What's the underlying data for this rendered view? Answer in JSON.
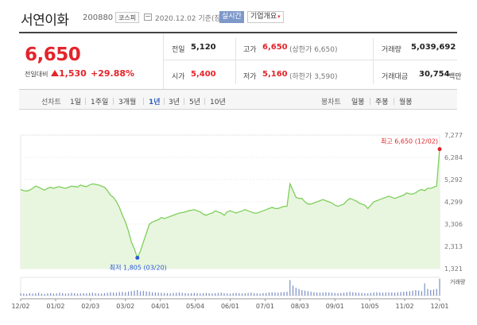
{
  "header": {
    "stock_name": "서연이화",
    "stock_code": "200880",
    "market_badge": "코스피",
    "date_text": "2020.12.02  기준(장마감)",
    "realtime_label": "실시간",
    "company_info_label": "기업개요"
  },
  "price": {
    "current": "6,650",
    "change_label": "전일대비",
    "change_value": "1,530",
    "change_percent": "+29.88%",
    "direction": "up"
  },
  "stats": {
    "prev_close_label": "전일",
    "prev_close": "5,120",
    "high_label": "고가",
    "high": "6,650",
    "upper_limit": "(상한가 6,650)",
    "volume_label": "거래량",
    "volume": "5,039,692",
    "open_label": "시가",
    "open": "5,400",
    "low_label": "저가",
    "low": "5,160",
    "lower_limit": "(하한가 3,590)",
    "value_label": "거래대금",
    "value": "30,754",
    "value_unit": "백만"
  },
  "line_chart_tabs": {
    "label": "선차트",
    "items": [
      "1일",
      "1주일",
      "3개월",
      "1년",
      "3년",
      "5년",
      "10년"
    ],
    "selected": "1년"
  },
  "candle_chart_tabs": {
    "label": "봉차트",
    "items": [
      "일봉",
      "주봉",
      "월봉"
    ]
  },
  "colors": {
    "up": "#e3242b",
    "down": "#2a5ad6",
    "accent": "#3461c4",
    "line": "#7ccf5a",
    "fill": "#e9f6df"
  },
  "chart_data": {
    "type": "area",
    "x_ticks": [
      "12/02",
      "01/02",
      "02/03",
      "03/02",
      "04/01",
      "05/04",
      "06/01",
      "07/01",
      "08/03",
      "09/01",
      "10/05",
      "11/02",
      "12/01"
    ],
    "y_ticks": [
      7277,
      6284,
      5292,
      4299,
      3306,
      2313,
      1321
    ],
    "ylim": [
      1321,
      7277
    ],
    "max_annotation": {
      "label": "최고",
      "value": "6,650",
      "date": "(12/02)"
    },
    "min_annotation": {
      "label": "최저",
      "value": "1,805",
      "date": "(03/20)"
    },
    "volume_legend": "거래량",
    "series": [
      {
        "values": [
          4850,
          4800,
          4780,
          4820,
          4900,
          5000,
          4950,
          4880,
          4820,
          4900,
          4950,
          4900,
          4950,
          4980,
          4930,
          4900,
          4950,
          5000,
          4980,
          4960,
          5050,
          5000,
          4980,
          5050,
          5100,
          5080,
          5050,
          5000,
          4950,
          4800,
          4600,
          4500,
          4300,
          4050,
          3700,
          3400,
          3000,
          2500,
          2200,
          1805,
          2100,
          2500,
          2900,
          3300,
          3400,
          3450,
          3500,
          3600,
          3550,
          3600,
          3650,
          3700,
          3750,
          3800,
          3820,
          3850,
          3900,
          3920,
          3950,
          3900,
          3850,
          3750,
          3700,
          3760,
          3800,
          3900,
          3850,
          3800,
          3700,
          3850,
          3900,
          3850,
          3800,
          3850,
          3900,
          3950,
          3900,
          3850,
          3800,
          3800,
          3850,
          3900,
          3950,
          4000,
          4050,
          4000,
          4000,
          4050,
          4100,
          4100,
          5100,
          4800,
          4500,
          4450,
          4450,
          4300,
          4200,
          4200,
          4250,
          4300,
          4350,
          4400,
          4350,
          4300,
          4250,
          4150,
          4100,
          4150,
          4200,
          4350,
          4450,
          4400,
          4350,
          4250,
          4200,
          4150,
          4000,
          4150,
          4300,
          4350,
          4400,
          4450,
          4500,
          4550,
          4500,
          4450,
          4500,
          4550,
          4600,
          4700,
          4650,
          4650,
          4700,
          4800,
          4850,
          4800,
          4900,
          4900,
          4950,
          5000,
          6650
        ]
      }
    ],
    "volume": [
      20,
      18,
      15,
      22,
      18,
      20,
      25,
      18,
      15,
      20,
      22,
      18,
      20,
      25,
      22,
      18,
      20,
      24,
      22,
      18,
      20,
      22,
      20,
      24,
      26,
      22,
      20,
      18,
      22,
      26,
      30,
      28,
      26,
      32,
      34,
      30,
      36,
      40,
      45,
      50,
      40,
      42,
      38,
      36,
      30,
      28,
      26,
      25,
      24,
      22,
      20,
      24,
      26,
      28,
      25,
      22,
      20,
      22,
      24,
      22,
      20,
      22,
      24,
      22,
      20,
      22,
      24,
      26,
      22,
      20,
      18,
      22,
      24,
      22,
      20,
      22,
      24,
      26,
      22,
      20,
      18,
      22,
      24,
      28,
      30,
      28,
      26,
      30,
      32,
      34,
      140,
      90,
      70,
      60,
      50,
      45,
      40,
      35,
      30,
      28,
      26,
      28,
      30,
      28,
      26,
      24,
      22,
      24,
      26,
      30,
      34,
      30,
      28,
      26,
      24,
      22,
      20,
      24,
      28,
      30,
      28,
      26,
      28,
      30,
      28,
      26,
      30,
      32,
      34,
      36,
      40,
      45,
      50,
      45,
      40,
      110,
      60,
      50,
      55,
      60,
      150
    ]
  }
}
